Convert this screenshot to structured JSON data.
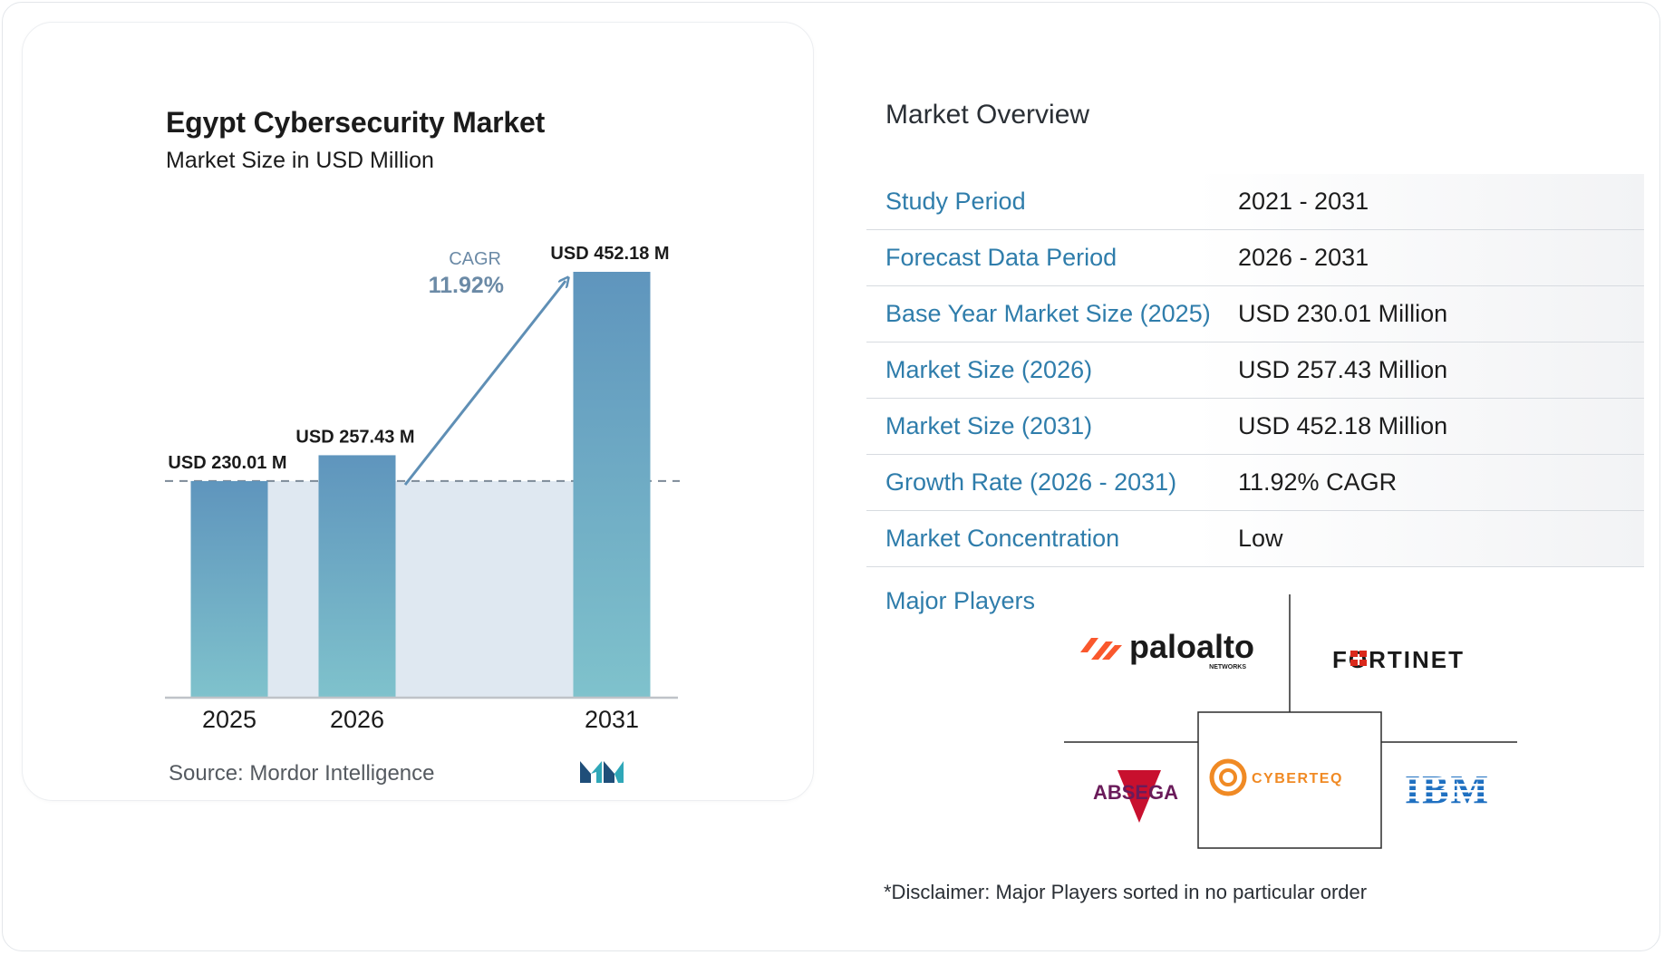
{
  "chart_data": {
    "type": "bar",
    "title": "Egypt Cybersecurity Market",
    "subtitle": "Market Size in USD Million",
    "categories": [
      "2025",
      "2026",
      "2031"
    ],
    "values": [
      230.01,
      257.43,
      452.18
    ],
    "data_labels": [
      "USD 230.01 M",
      "USD 257.43 M",
      "USD 452.18 M"
    ],
    "cagr_label": "CAGR",
    "cagr_value": "11.92%",
    "ylim": [
      0,
      452.18
    ],
    "grid": false,
    "colors": {
      "bar_top": "#5f95bd",
      "bar_bottom": "#7fc2cc",
      "band": "#dfe8f1",
      "arrow": "#5f8fb5",
      "baseline": "#bfc3c8"
    }
  },
  "source": {
    "label": "Source:",
    "name": "Mordor Intelligence"
  },
  "overview": {
    "title": "Market Overview",
    "rows": [
      {
        "label": "Study Period",
        "value": "2021 - 2031"
      },
      {
        "label": "Forecast Data Period",
        "value": "2026 - 2031"
      },
      {
        "label": "Base Year Market Size (2025)",
        "value": "USD 230.01 Million"
      },
      {
        "label": "Market Size (2026)",
        "value": "USD 257.43 Million"
      },
      {
        "label": "Market Size (2031)",
        "value": "USD 452.18 Million"
      },
      {
        "label": "Growth Rate (2026 - 2031)",
        "value": "11.92% CAGR"
      },
      {
        "label": "Market Concentration",
        "value": "Low"
      }
    ],
    "label_color": "#2f7dab"
  },
  "players": {
    "label": "Major Players",
    "logos": {
      "paloalto": {
        "name": "paloalto",
        "sub": "NETWORKS",
        "color": "#fa582d"
      },
      "fortinet": {
        "name": "FORTINET",
        "color": "#da291c"
      },
      "absega": {
        "name": "ABSEGA",
        "color": "#7b1e5a"
      },
      "cyberteq": {
        "name": "CYBERTEQ",
        "color": "#f08a24"
      },
      "ibm": {
        "name": "IBM",
        "color": "#1f70c1"
      }
    },
    "disclaimer": "*Disclaimer: Major Players sorted in no particular order"
  }
}
